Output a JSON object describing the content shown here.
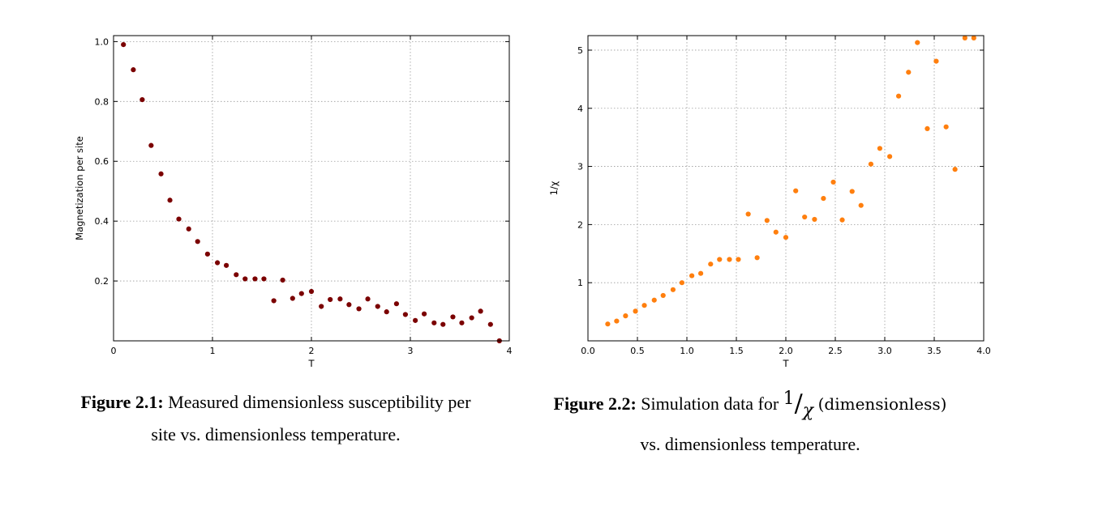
{
  "chart_data": [
    {
      "type": "scatter",
      "xlabel": "T",
      "ylabel": "Magnetization per site",
      "xlim": [
        0,
        4
      ],
      "ylim": [
        0,
        1.02
      ],
      "xticks": [
        0,
        1,
        2,
        3,
        4
      ],
      "xtick_labels": [
        "0",
        "1",
        "2",
        "3",
        "4"
      ],
      "yticks": [
        0.2,
        0.4,
        0.6,
        0.8,
        1.0
      ],
      "ytick_labels": [
        "0.2",
        "0.4",
        "0.6",
        "0.8",
        "1.0"
      ],
      "grid": true,
      "color": "#7b0000",
      "x": [
        0.1,
        0.2,
        0.29,
        0.38,
        0.48,
        0.57,
        0.66,
        0.76,
        0.85,
        0.95,
        1.05,
        1.14,
        1.24,
        1.33,
        1.43,
        1.52,
        1.62,
        1.71,
        1.81,
        1.9,
        2.0,
        2.1,
        2.19,
        2.29,
        2.38,
        2.48,
        2.57,
        2.67,
        2.76,
        2.86,
        2.95,
        3.05,
        3.14,
        3.24,
        3.33,
        3.43,
        3.52,
        3.62,
        3.71,
        3.81,
        3.9
      ],
      "y": [
        0.99,
        0.906,
        0.806,
        0.653,
        0.558,
        0.47,
        0.407,
        0.374,
        0.332,
        0.29,
        0.261,
        0.252,
        0.221,
        0.207,
        0.207,
        0.207,
        0.134,
        0.203,
        0.142,
        0.158,
        0.165,
        0.115,
        0.138,
        0.14,
        0.121,
        0.107,
        0.14,
        0.115,
        0.097,
        0.124,
        0.088,
        0.068,
        0.09,
        0.06,
        0.055,
        0.08,
        0.06,
        0.077,
        0.099,
        0.055,
        0.0
      ]
    },
    {
      "type": "scatter",
      "xlabel": "T",
      "ylabel": "1/χ",
      "xlim": [
        0.0,
        4.0
      ],
      "ylim": [
        0.0,
        5.25
      ],
      "xticks": [
        0.0,
        0.5,
        1.0,
        1.5,
        2.0,
        2.5,
        3.0,
        3.5,
        4.0
      ],
      "xtick_labels": [
        "0.0",
        "0.5",
        "1.0",
        "1.5",
        "2.0",
        "2.5",
        "3.0",
        "3.5",
        "4.0"
      ],
      "yticks": [
        1,
        2,
        3,
        4,
        5
      ],
      "ytick_labels": [
        "1",
        "2",
        "3",
        "4",
        "5"
      ],
      "grid": true,
      "color": "#ff7f0e",
      "x": [
        0.2,
        0.29,
        0.38,
        0.48,
        0.57,
        0.67,
        0.76,
        0.86,
        0.95,
        1.05,
        1.14,
        1.24,
        1.33,
        1.43,
        1.52,
        1.62,
        1.71,
        1.81,
        1.9,
        2.0,
        2.1,
        2.19,
        2.29,
        2.38,
        2.48,
        2.57,
        2.67,
        2.76,
        2.86,
        2.95,
        3.05,
        3.14,
        3.24,
        3.33,
        3.43,
        3.52,
        3.62,
        3.71,
        3.81,
        3.9
      ],
      "y": [
        0.29,
        0.34,
        0.43,
        0.51,
        0.61,
        0.7,
        0.78,
        0.88,
        1.0,
        1.12,
        1.16,
        1.32,
        1.4,
        1.4,
        1.4,
        2.18,
        1.43,
        2.07,
        1.87,
        1.78,
        2.58,
        2.13,
        2.09,
        2.45,
        2.73,
        2.08,
        2.57,
        2.33,
        3.04,
        3.31,
        3.17,
        4.21,
        4.62,
        5.13,
        3.65,
        4.81,
        3.68,
        2.95,
        5.21,
        5.21
      ]
    }
  ],
  "captions": {
    "fig1": {
      "label": "Figure 2.1:",
      "line1": "Measured dimensionless susceptibility per",
      "line2": "site vs. dimensionless temperature."
    },
    "fig2": {
      "label": "Figure 2.2:",
      "prefix": "Simulation data for",
      "numerator": "1",
      "slash": "/",
      "symbol": "χ",
      "unit": "(dimensionless)",
      "line2": "vs. dimensionless temperature."
    }
  }
}
